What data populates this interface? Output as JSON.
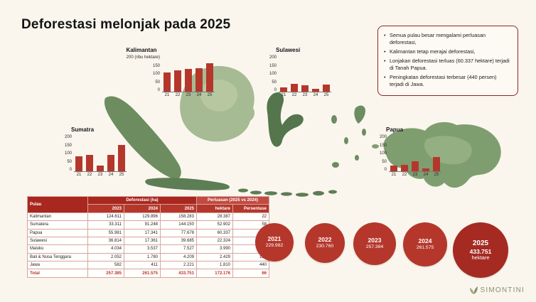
{
  "title": "Deforestasi melonjak pada 2025",
  "colors": {
    "accent_red": "#b5372b",
    "dark_red": "#a52a21",
    "box_border_red": "#8e2620",
    "map_green": "#6d8d60",
    "map_green_light": "#a6bb94",
    "background": "#faf6ee",
    "logo_olive": "#84936d"
  },
  "info_box": {
    "bullets": [
      "Semua pulau besar mengalami perluasan deforestasi,",
      "Kalimantan tetap merajai deforestasi,",
      "Lonjakan deforestasi terluas (60.337 hektare) terjadi di Tanah Papua.",
      "Peningkatan deforestasi terbesar (440 persen) terjadi di Jawa."
    ]
  },
  "chart_data": [
    {
      "type": "bar",
      "title": "Kalimantan",
      "unit": "(ribu hektare)",
      "categories": [
        "21",
        "22",
        "23",
        "24",
        "25"
      ],
      "values": [
        104,
        119,
        125,
        130,
        158
      ],
      "ylim": [
        0,
        200
      ],
      "yticks": [
        200,
        150,
        100,
        50,
        0
      ],
      "bar_color": "#b5372b",
      "grid": false
    },
    {
      "type": "bar",
      "title": "Sulawesi",
      "categories": [
        "21",
        "22",
        "23",
        "24",
        "25"
      ],
      "values": [
        25,
        43,
        37,
        17,
        40
      ],
      "ylim": [
        0,
        200
      ],
      "yticks": [
        200,
        150,
        100,
        50,
        0
      ],
      "bar_color": "#b5372b",
      "grid": false
    },
    {
      "type": "bar",
      "title": "Sumatra",
      "categories": [
        "21",
        "22",
        "23",
        "24",
        "25"
      ],
      "values": [
        84,
        90,
        33,
        91,
        144
      ],
      "ylim": [
        0,
        200
      ],
      "yticks": [
        200,
        150,
        100,
        50,
        0
      ],
      "bar_color": "#b5372b",
      "grid": false
    },
    {
      "type": "bar",
      "title": "Papua",
      "categories": [
        "21",
        "22",
        "23",
        "24",
        "25"
      ],
      "values": [
        30,
        34,
        56,
        17,
        78
      ],
      "ylim": [
        0,
        200
      ],
      "yticks": [
        200,
        150,
        100,
        50,
        0
      ],
      "bar_color": "#b5372b",
      "grid": false
    }
  ],
  "table": {
    "col1_header": "Pulau",
    "group1_header": "Deforestasi (ha)",
    "group2_header": "Perluasan (2025 vs 2024)",
    "sub_headers": [
      "2023",
      "2024",
      "2025",
      "hektare",
      "Persentase"
    ],
    "rows": [
      {
        "pulau": "Kalimantan",
        "values": [
          "124.611",
          "129.896",
          "158.283",
          "28.387",
          "22"
        ]
      },
      {
        "pulau": "Sumatera",
        "values": [
          "33.311",
          "91.248",
          "144.150",
          "52.902",
          "58"
        ]
      },
      {
        "pulau": "Papua",
        "values": [
          "55.981",
          "17.341",
          "77.678",
          "60.337",
          "348"
        ]
      },
      {
        "pulau": "Sulawesi",
        "values": [
          "36.814",
          "17.361",
          "39.685",
          "22.324",
          "129"
        ]
      },
      {
        "pulau": "Maluku",
        "values": [
          "4.034",
          "3.537",
          "7.527",
          "3.990",
          "113"
        ]
      },
      {
        "pulau": "Bali & Nusa Tenggara",
        "values": [
          "2.052",
          "1.780",
          "4.209",
          "2.429",
          "136"
        ]
      },
      {
        "pulau": "Jawa",
        "values": [
          "582",
          "411",
          "2.221",
          "1.810",
          "440"
        ]
      },
      {
        "pulau": "Total",
        "values": [
          "257.385",
          "261.575",
          "433.751",
          "172.176",
          "66"
        ],
        "total": true
      }
    ]
  },
  "year_circles": [
    {
      "year": "2021",
      "value": "229.982"
    },
    {
      "year": "2022",
      "value": "230.760"
    },
    {
      "year": "2023",
      "value": "257.384"
    },
    {
      "year": "2024",
      "value": "261.575"
    },
    {
      "year": "2025",
      "value": "433.751",
      "unit": "hektare"
    }
  ],
  "logo": {
    "text": "SIMONTINI"
  }
}
